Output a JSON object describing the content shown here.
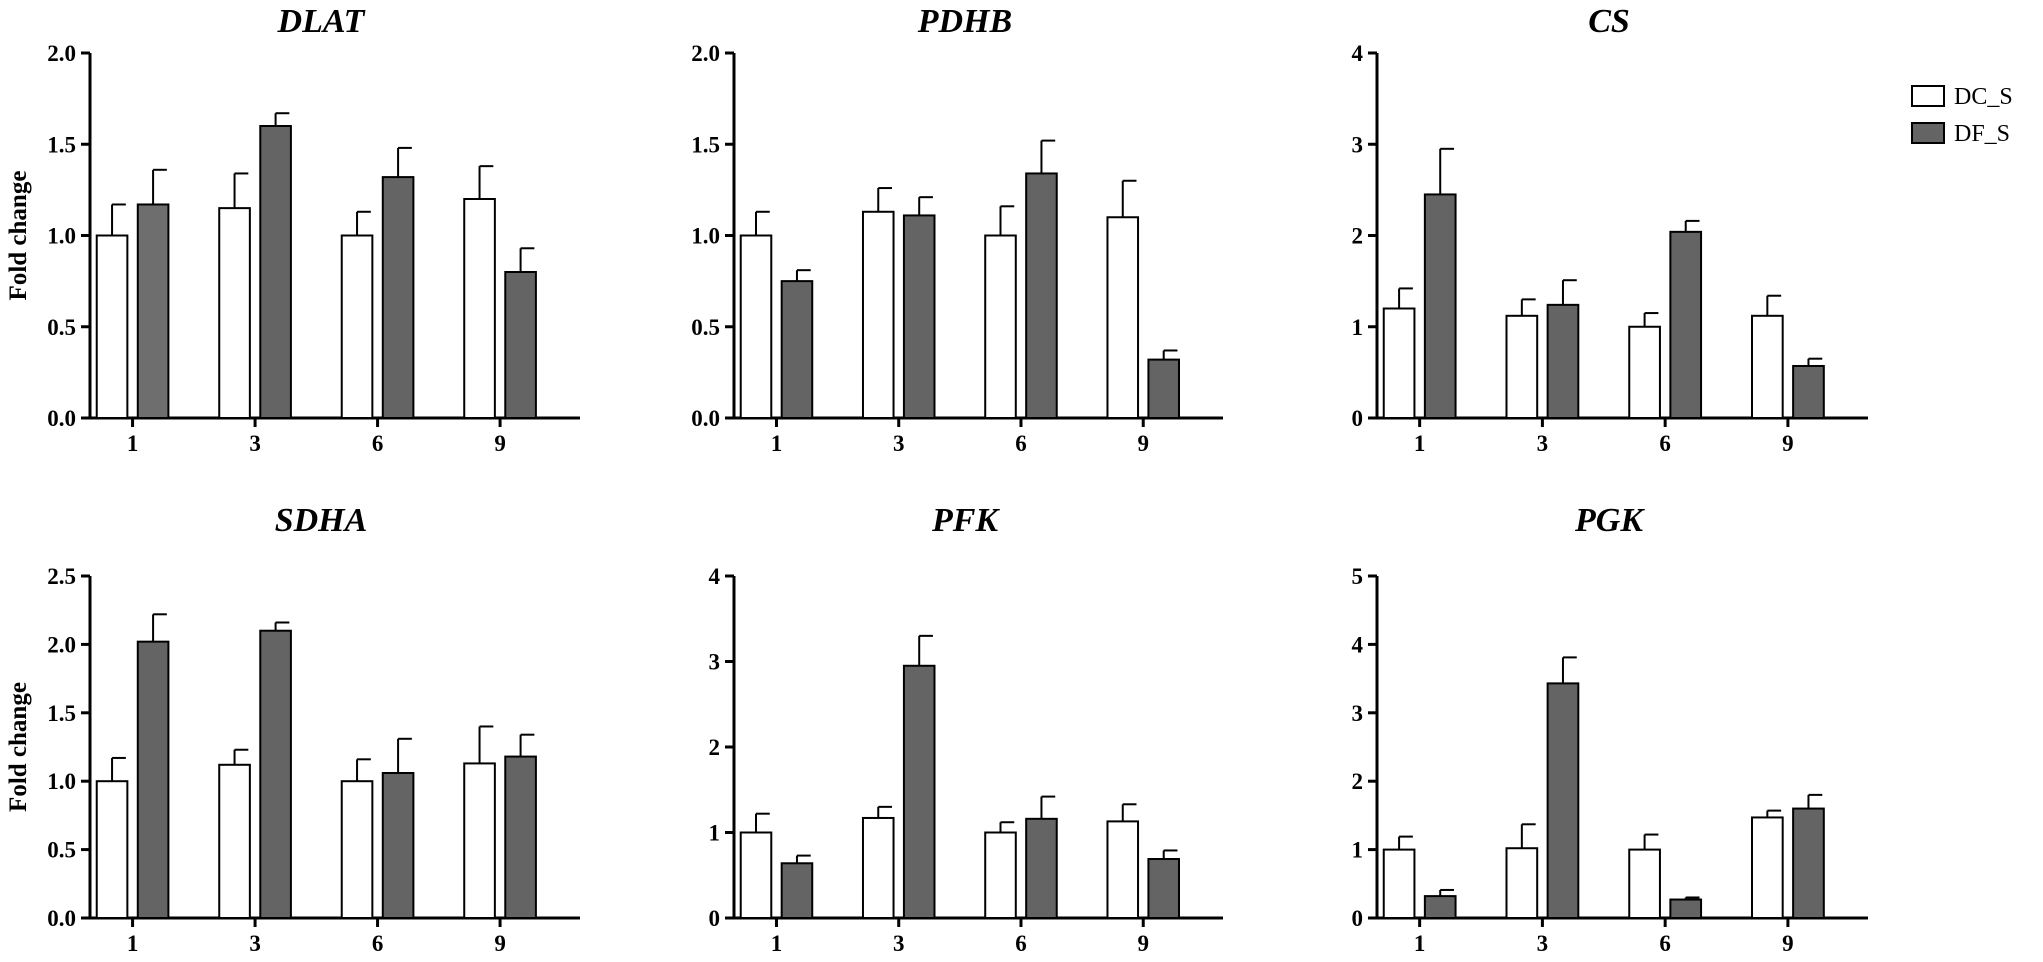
{
  "chart_data": [
    {
      "type": "bar",
      "title": "DLAT",
      "ylabel": "Fold change",
      "categories": [
        "1",
        "3",
        "6",
        "9"
      ],
      "ylim": [
        0,
        2.0
      ],
      "yticks": [
        "0.0",
        "0.5",
        "1.0",
        "1.5",
        "2.0"
      ],
      "series": [
        {
          "name": "DC_S",
          "values": [
            1.0,
            1.15,
            1.0,
            1.2
          ],
          "errors": [
            0.17,
            0.19,
            0.13,
            0.18
          ]
        },
        {
          "name": "DF_S",
          "values": [
            1.17,
            1.6,
            1.32,
            0.8
          ],
          "errors": [
            0.19,
            0.07,
            0.16,
            0.13
          ]
        }
      ]
    },
    {
      "type": "bar",
      "title": "PDHB",
      "ylabel": "",
      "categories": [
        "1",
        "3",
        "6",
        "9"
      ],
      "ylim": [
        0,
        2.0
      ],
      "yticks": [
        "0.0",
        "0.5",
        "1.0",
        "1.5",
        "2.0"
      ],
      "series": [
        {
          "name": "DC_S",
          "values": [
            1.0,
            1.13,
            1.0,
            1.1
          ],
          "errors": [
            0.13,
            0.13,
            0.16,
            0.2
          ]
        },
        {
          "name": "DF_S",
          "values": [
            0.75,
            1.11,
            1.34,
            0.32
          ],
          "errors": [
            0.06,
            0.1,
            0.18,
            0.05
          ]
        }
      ]
    },
    {
      "type": "bar",
      "title": "CS",
      "ylabel": "",
      "categories": [
        "1",
        "3",
        "6",
        "9"
      ],
      "ylim": [
        0,
        4
      ],
      "yticks": [
        "0",
        "1",
        "2",
        "3",
        "4"
      ],
      "series": [
        {
          "name": "DC_S",
          "values": [
            1.2,
            1.12,
            1.0,
            1.12
          ],
          "errors": [
            0.22,
            0.18,
            0.15,
            0.22
          ]
        },
        {
          "name": "DF_S",
          "values": [
            2.45,
            1.24,
            2.04,
            0.57
          ],
          "errors": [
            0.5,
            0.27,
            0.12,
            0.08
          ]
        }
      ]
    },
    {
      "type": "bar",
      "title": "SDHA",
      "ylabel": "Fold change",
      "categories": [
        "1",
        "3",
        "6",
        "9"
      ],
      "ylim": [
        0,
        2.5
      ],
      "yticks": [
        "0.0",
        "0.5",
        "1.0",
        "1.5",
        "2.0",
        "2.5"
      ],
      "series": [
        {
          "name": "DC_S",
          "values": [
            1.0,
            1.12,
            1.0,
            1.13
          ],
          "errors": [
            0.17,
            0.11,
            0.16,
            0.27
          ]
        },
        {
          "name": "DF_S",
          "values": [
            2.02,
            2.1,
            1.06,
            1.18
          ],
          "errors": [
            0.2,
            0.06,
            0.25,
            0.16
          ]
        }
      ]
    },
    {
      "type": "bar",
      "title": "PFK",
      "ylabel": "",
      "categories": [
        "1",
        "3",
        "6",
        "9"
      ],
      "ylim": [
        0,
        4
      ],
      "yticks": [
        "0",
        "1",
        "2",
        "3",
        "4"
      ],
      "series": [
        {
          "name": "DC_S",
          "values": [
            1.0,
            1.17,
            1.0,
            1.13
          ],
          "errors": [
            0.22,
            0.13,
            0.12,
            0.2
          ]
        },
        {
          "name": "DF_S",
          "values": [
            0.64,
            2.95,
            1.16,
            0.69
          ],
          "errors": [
            0.09,
            0.35,
            0.26,
            0.1
          ]
        }
      ]
    },
    {
      "type": "bar",
      "title": "PGK",
      "ylabel": "",
      "categories": [
        "1",
        "3",
        "6",
        "9"
      ],
      "ylim": [
        0,
        5
      ],
      "yticks": [
        "0",
        "1",
        "2",
        "3",
        "4",
        "5"
      ],
      "series": [
        {
          "name": "DC_S",
          "values": [
            1.0,
            1.02,
            1.0,
            1.47
          ],
          "errors": [
            0.19,
            0.35,
            0.22,
            0.1
          ]
        },
        {
          "name": "DF_S",
          "values": [
            0.32,
            3.43,
            0.27,
            1.6
          ],
          "errors": [
            0.09,
            0.38,
            0.03,
            0.2
          ]
        }
      ]
    }
  ],
  "legend": {
    "position": "top-right",
    "items": [
      {
        "label": "DC_S",
        "color": "#ffffff"
      },
      {
        "label": "DF_S",
        "color": "#646464"
      }
    ]
  },
  "colors": {
    "dc_s": "#ffffff",
    "df_s": "#646464",
    "dlat_first_df": "#6e6e6e",
    "axis": "#000000"
  }
}
